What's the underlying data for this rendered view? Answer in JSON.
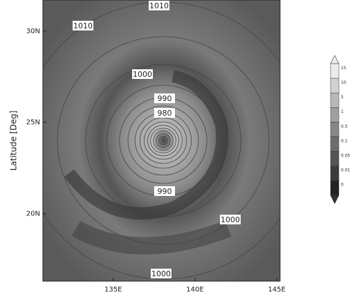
{
  "chart_data": {
    "type": "map",
    "y_label": "Latitude [Deg]",
    "xlim": [
      130.7,
      145.2
    ],
    "ylim": [
      16.3,
      31.7
    ],
    "xticks": [
      {
        "value": 135,
        "label": "135E"
      },
      {
        "value": 140,
        "label": "140E"
      },
      {
        "value": 145,
        "label": "145E"
      }
    ],
    "yticks": [
      {
        "value": 20,
        "label": "20N"
      },
      {
        "value": 25,
        "label": "25N"
      },
      {
        "value": 30,
        "label": "30N"
      }
    ],
    "contour_labels": [
      1010,
      1010,
      1000,
      990,
      980,
      990,
      1000,
      1000
    ],
    "colorbar_levels": [
      15,
      10,
      5,
      1,
      0.5,
      0.1,
      0.05,
      0.01,
      0
    ]
  }
}
